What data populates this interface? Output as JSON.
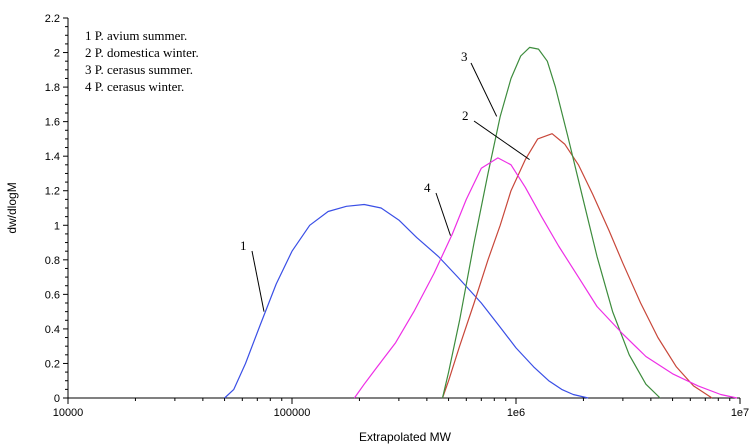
{
  "chart_data": {
    "type": "line",
    "xlabel": "Extrapolated MW",
    "ylabel": "dw/dlogM",
    "xscale": "log",
    "xlim": [
      10000,
      10000000
    ],
    "ylim": [
      0,
      2.2
    ],
    "x_ticks": [
      "10000",
      "100000",
      "1e6",
      "1e7"
    ],
    "y_ticks": [
      "0",
      "0.2",
      "0.4",
      "0.6",
      "0.8",
      "1",
      "1.2",
      "1.4",
      "1.6",
      "1.8",
      "2",
      "2.2"
    ],
    "grid": false,
    "legend_position": "top-left",
    "legend": [
      "1 P. avium summer.",
      "2 P. domestica winter.",
      "3 P. cerasus summer.",
      "4 P. cerasus winter."
    ],
    "series": [
      {
        "label": "1",
        "color": "#3a4fe6",
        "points": [
          [
            50000,
            0
          ],
          [
            55000,
            0.05
          ],
          [
            62000,
            0.2
          ],
          [
            72000,
            0.42
          ],
          [
            85000,
            0.66
          ],
          [
            100000,
            0.85
          ],
          [
            120000,
            1.0
          ],
          [
            145000,
            1.08
          ],
          [
            175000,
            1.11
          ],
          [
            210000,
            1.12
          ],
          [
            250000,
            1.1
          ],
          [
            300000,
            1.03
          ],
          [
            360000,
            0.93
          ],
          [
            450000,
            0.82
          ],
          [
            550000,
            0.7
          ],
          [
            700000,
            0.55
          ],
          [
            850000,
            0.41
          ],
          [
            1000000,
            0.29
          ],
          [
            1200000,
            0.18
          ],
          [
            1400000,
            0.1
          ],
          [
            1600000,
            0.05
          ],
          [
            1800000,
            0.02
          ],
          [
            2100000,
            0
          ]
        ]
      },
      {
        "label": "2",
        "color": "#c8473a",
        "points": [
          [
            470000,
            0
          ],
          [
            500000,
            0.1
          ],
          [
            560000,
            0.3
          ],
          [
            650000,
            0.55
          ],
          [
            750000,
            0.8
          ],
          [
            850000,
            1.0
          ],
          [
            950000,
            1.2
          ],
          [
            1100000,
            1.38
          ],
          [
            1250000,
            1.5
          ],
          [
            1450000,
            1.53
          ],
          [
            1650000,
            1.47
          ],
          [
            1900000,
            1.35
          ],
          [
            2200000,
            1.18
          ],
          [
            2600000,
            0.97
          ],
          [
            3000000,
            0.78
          ],
          [
            3600000,
            0.55
          ],
          [
            4300000,
            0.35
          ],
          [
            5200000,
            0.18
          ],
          [
            6200000,
            0.07
          ],
          [
            7500000,
            0
          ]
        ]
      },
      {
        "label": "3",
        "color": "#3d8c3d",
        "points": [
          [
            470000,
            0
          ],
          [
            500000,
            0.15
          ],
          [
            560000,
            0.45
          ],
          [
            650000,
            0.9
          ],
          [
            750000,
            1.3
          ],
          [
            850000,
            1.63
          ],
          [
            950000,
            1.85
          ],
          [
            1050000,
            1.98
          ],
          [
            1150000,
            2.03
          ],
          [
            1260000,
            2.02
          ],
          [
            1380000,
            1.95
          ],
          [
            1500000,
            1.8
          ],
          [
            1700000,
            1.52
          ],
          [
            1950000,
            1.2
          ],
          [
            2300000,
            0.82
          ],
          [
            2700000,
            0.5
          ],
          [
            3200000,
            0.25
          ],
          [
            3800000,
            0.08
          ],
          [
            4400000,
            0
          ]
        ]
      },
      {
        "label": "4",
        "color": "#ee2fe6",
        "points": [
          [
            190000,
            0
          ],
          [
            210000,
            0.08
          ],
          [
            240000,
            0.18
          ],
          [
            290000,
            0.32
          ],
          [
            350000,
            0.5
          ],
          [
            430000,
            0.72
          ],
          [
            520000,
            0.95
          ],
          [
            600000,
            1.15
          ],
          [
            700000,
            1.33
          ],
          [
            830000,
            1.39
          ],
          [
            950000,
            1.35
          ],
          [
            1100000,
            1.22
          ],
          [
            1300000,
            1.05
          ],
          [
            1550000,
            0.88
          ],
          [
            1900000,
            0.7
          ],
          [
            2300000,
            0.53
          ],
          [
            3000000,
            0.37
          ],
          [
            3800000,
            0.24
          ],
          [
            5000000,
            0.14
          ],
          [
            6500000,
            0.07
          ],
          [
            8200000,
            0.02
          ],
          [
            9700000,
            0
          ]
        ]
      }
    ],
    "annotations": [
      "1",
      "2",
      "3",
      "4"
    ]
  }
}
